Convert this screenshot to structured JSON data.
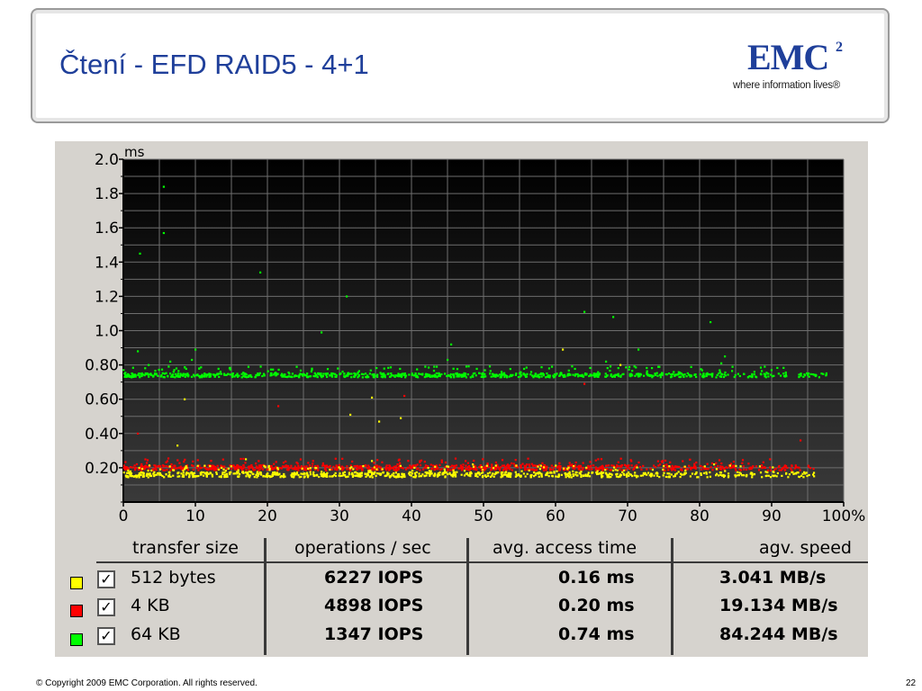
{
  "slide": {
    "title": "Čtení - EFD RAID5 - 4+1",
    "footer": "© Copyright 2009 EMC Corporation. All rights reserved.",
    "page_number": "22"
  },
  "logo": {
    "name": "EMC",
    "superscript": "2",
    "tagline": "where information lives®",
    "color": "#1f3f9a"
  },
  "chart_data": {
    "type": "scatter",
    "title": "",
    "ylabel": "ms",
    "xlabel": "",
    "xlim": [
      0,
      100
    ],
    "ylim": [
      0,
      2.0
    ],
    "x_ticks": [
      "0",
      "10",
      "20",
      "30",
      "40",
      "50",
      "60",
      "70",
      "80",
      "90",
      "100%"
    ],
    "y_ticks": [
      "0.20",
      "0.40",
      "0.60",
      "0.80",
      "1.0",
      "1.2",
      "1.4",
      "1.6",
      "1.8",
      "2.0"
    ],
    "grid": true,
    "background": "#000000",
    "series": [
      {
        "name": "512 bytes",
        "color": "#ffff00",
        "x_range": [
          0,
          96
        ],
        "band_center": 0.16,
        "band_spread": 0.015,
        "outliers": [
          [
            2.2,
            0.2
          ],
          [
            7.5,
            0.33
          ],
          [
            8.5,
            0.6
          ],
          [
            17,
            0.25
          ],
          [
            31.5,
            0.51
          ],
          [
            34.5,
            0.61
          ],
          [
            35.5,
            0.47
          ],
          [
            38.5,
            0.49
          ],
          [
            34.5,
            0.24
          ],
          [
            48.5,
            0.22
          ],
          [
            61,
            0.89
          ],
          [
            69,
            0.8
          ],
          [
            62.5,
            0.21
          ],
          [
            75,
            0.21
          ],
          [
            82,
            0.22
          ]
        ]
      },
      {
        "name": "4 KB",
        "color": "#ff0000",
        "x_range": [
          0,
          96
        ],
        "band_center": 0.2,
        "band_spread": 0.015,
        "outliers": [
          [
            2,
            0.4
          ],
          [
            21.5,
            0.56
          ],
          [
            39,
            0.62
          ],
          [
            64,
            0.69
          ],
          [
            94,
            0.36
          ],
          [
            47.5,
            0.24
          ],
          [
            92,
            0.21
          ]
        ]
      },
      {
        "name": "64 KB",
        "color": "#00ff00",
        "x_range": [
          0,
          98
        ],
        "band_center": 0.74,
        "band_spread": 0.012,
        "outliers": [
          [
            5.6,
            1.84
          ],
          [
            5.6,
            1.57
          ],
          [
            2.3,
            1.45
          ],
          [
            19,
            1.34
          ],
          [
            31,
            1.2
          ],
          [
            27.5,
            0.99
          ],
          [
            64,
            1.11
          ],
          [
            68,
            1.08
          ],
          [
            81.5,
            1.05
          ],
          [
            2,
            0.88
          ],
          [
            10,
            0.89
          ],
          [
            45.5,
            0.92
          ],
          [
            71.5,
            0.89
          ],
          [
            83.5,
            0.85
          ],
          [
            9.5,
            0.83
          ],
          [
            45,
            0.83
          ],
          [
            67,
            0.82
          ],
          [
            83,
            0.81
          ],
          [
            6.5,
            0.82
          ],
          [
            3.5,
            0.8
          ],
          [
            43.5,
            0.79
          ]
        ]
      }
    ]
  },
  "table": {
    "headers": [
      "transfer size",
      "operations / sec",
      "avg. access time",
      "agv. speed"
    ],
    "rows": [
      {
        "color": "#ffff00",
        "checked": "✓",
        "size": "512 bytes",
        "ops": "6227 IOPS",
        "time": "0.16 ms",
        "speed": "3.041 MB/s"
      },
      {
        "color": "#ff0000",
        "checked": "✓",
        "size": "4 KB",
        "ops": "4898 IOPS",
        "time": "0.20 ms",
        "speed": "19.134 MB/s"
      },
      {
        "color": "#00ff00",
        "checked": "✓",
        "size": "64 KB",
        "ops": "1347 IOPS",
        "time": "0.74 ms",
        "speed": "84.244 MB/s"
      }
    ]
  }
}
